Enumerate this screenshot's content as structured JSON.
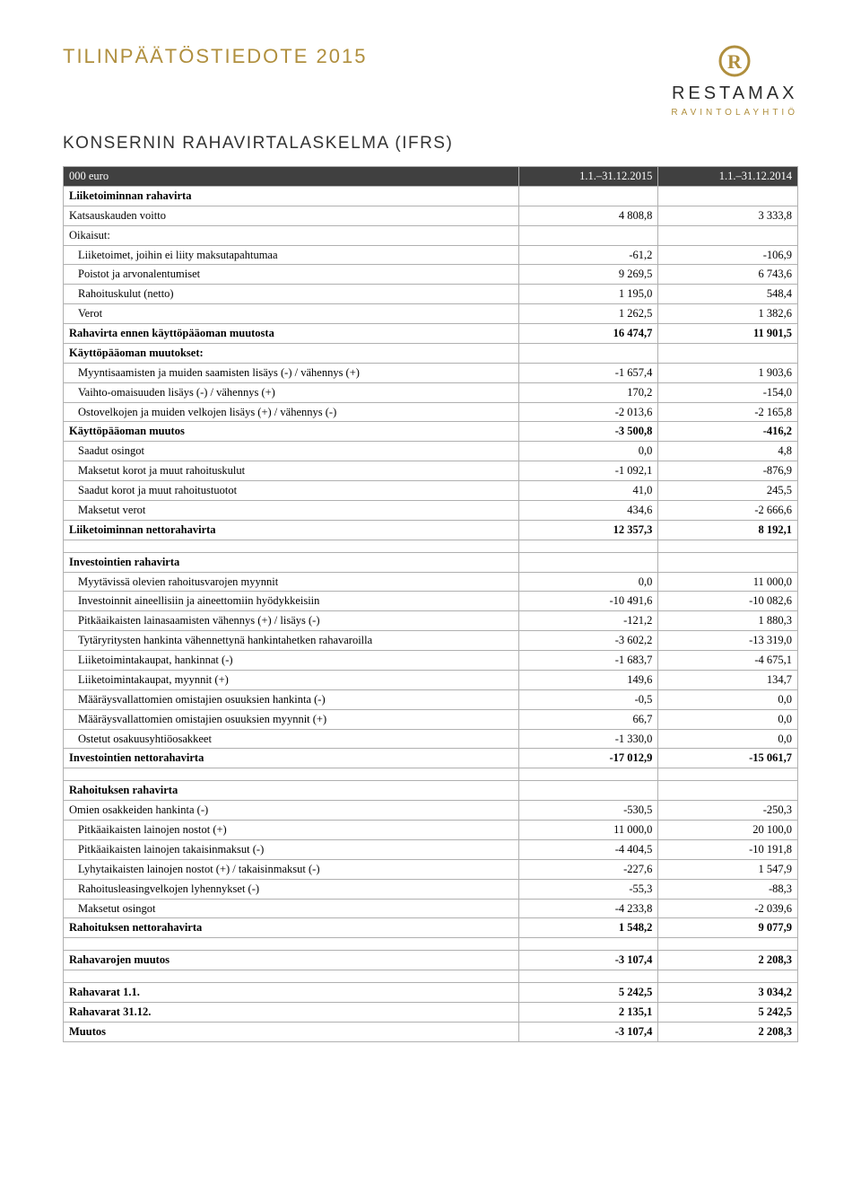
{
  "header": {
    "doc_title": "TILINPÄÄTÖSTIEDOTE 2015",
    "brand_name": "RESTAMAX",
    "brand_sub": "RAVINTOLAYHTIÖ",
    "logo_color": "#b08f3e"
  },
  "section_title": "KONSERNIN RAHAVIRTALASKELMA (IFRS)",
  "table": {
    "columns": [
      "000 euro",
      "1.1.–31.12.2015",
      "1.1.–31.12.2014"
    ],
    "rows": [
      {
        "label": "Liiketoiminnan rahavirta",
        "v1": "",
        "v2": "",
        "bold": true,
        "indent": 0
      },
      {
        "label": "Katsauskauden voitto",
        "v1": "4 808,8",
        "v2": "3 333,8",
        "indent": 0
      },
      {
        "label": "Oikaisut:",
        "v1": "",
        "v2": "",
        "indent": 0
      },
      {
        "label": "Liiketoimet, joihin ei liity maksutapahtumaa",
        "v1": "-61,2",
        "v2": "-106,9",
        "indent": 1
      },
      {
        "label": "Poistot ja arvonalentumiset",
        "v1": "9 269,5",
        "v2": "6 743,6",
        "indent": 1
      },
      {
        "label": "Rahoituskulut (netto)",
        "v1": "1 195,0",
        "v2": "548,4",
        "indent": 1
      },
      {
        "label": "Verot",
        "v1": "1 262,5",
        "v2": "1 382,6",
        "indent": 1
      },
      {
        "label": "Rahavirta ennen käyttöpääoman muutosta",
        "v1": "16 474,7",
        "v2": "11 901,5",
        "bold": true,
        "indent": 0
      },
      {
        "label": "Käyttöpääoman muutokset:",
        "v1": "",
        "v2": "",
        "bold": true,
        "indent": 0
      },
      {
        "label": "Myyntisaamisten ja muiden saamisten lisäys (-) / vähennys (+)",
        "v1": "-1 657,4",
        "v2": "1 903,6",
        "indent": 1
      },
      {
        "label": "Vaihto-omaisuuden lisäys (-) / vähennys (+)",
        "v1": "170,2",
        "v2": "-154,0",
        "indent": 1
      },
      {
        "label": "Ostovelkojen ja muiden velkojen lisäys (+) / vähennys (-)",
        "v1": "-2 013,6",
        "v2": "-2 165,8",
        "indent": 1
      },
      {
        "label": "Käyttöpääoman muutos",
        "v1": "-3 500,8",
        "v2": "-416,2",
        "bold": true,
        "indent": 0
      },
      {
        "label": "Saadut osingot",
        "v1": "0,0",
        "v2": "4,8",
        "indent": 1
      },
      {
        "label": "Maksetut korot ja muut rahoituskulut",
        "v1": "-1 092,1",
        "v2": "-876,9",
        "indent": 1
      },
      {
        "label": "Saadut korot ja muut rahoitustuotot",
        "v1": "41,0",
        "v2": "245,5",
        "indent": 1
      },
      {
        "label": "Maksetut verot",
        "v1": "434,6",
        "v2": "-2 666,6",
        "indent": 1
      },
      {
        "label": "Liiketoiminnan nettorahavirta",
        "v1": "12 357,3",
        "v2": "8 192,1",
        "bold": true,
        "indent": 0
      },
      {
        "spacer": true
      },
      {
        "label": "Investointien rahavirta",
        "v1": "",
        "v2": "",
        "bold": true,
        "indent": 0
      },
      {
        "label": "Myytävissä olevien rahoitusvarojen myynnit",
        "v1": "0,0",
        "v2": "11 000,0",
        "indent": 1
      },
      {
        "label": "Investoinnit aineellisiin ja aineettomiin hyödykkeisiin",
        "v1": "-10 491,6",
        "v2": "-10 082,6",
        "indent": 1
      },
      {
        "label": "Pitkäaikaisten lainasaamisten vähennys (+) / lisäys (-)",
        "v1": "-121,2",
        "v2": "1 880,3",
        "indent": 1
      },
      {
        "label": "Tytäryritysten hankinta vähennettynä hankintahetken rahavaroilla",
        "v1": "-3 602,2",
        "v2": "-13 319,0",
        "indent": 1
      },
      {
        "label": "Liiketoimintakaupat, hankinnat (-)",
        "v1": "-1 683,7",
        "v2": "-4 675,1",
        "indent": 1
      },
      {
        "label": "Liiketoimintakaupat, myynnit (+)",
        "v1": "149,6",
        "v2": "134,7",
        "indent": 1
      },
      {
        "label": "Määräysvallattomien omistajien osuuksien hankinta (-)",
        "v1": "-0,5",
        "v2": "0,0",
        "indent": 1
      },
      {
        "label": "Määräysvallattomien omistajien osuuksien myynnit (+)",
        "v1": "66,7",
        "v2": "0,0",
        "indent": 1
      },
      {
        "label": "Ostetut osakuusyhtiöosakkeet",
        "v1": "-1 330,0",
        "v2": "0,0",
        "indent": 1
      },
      {
        "label": "Investointien nettorahavirta",
        "v1": "-17 012,9",
        "v2": "-15 061,7",
        "bold": true,
        "indent": 0
      },
      {
        "spacer": true
      },
      {
        "label": "Rahoituksen rahavirta",
        "v1": "",
        "v2": "",
        "bold": true,
        "indent": 0
      },
      {
        "label": "Omien osakkeiden hankinta (-)",
        "v1": "-530,5",
        "v2": "-250,3",
        "indent": 0
      },
      {
        "label": "Pitkäaikaisten lainojen nostot (+)",
        "v1": "11 000,0",
        "v2": "20 100,0",
        "indent": 1
      },
      {
        "label": "Pitkäaikaisten lainojen takaisinmaksut (-)",
        "v1": "-4 404,5",
        "v2": "-10 191,8",
        "indent": 1
      },
      {
        "label": "Lyhytaikaisten lainojen nostot (+) / takaisinmaksut (-)",
        "v1": "-227,6",
        "v2": "1 547,9",
        "indent": 1
      },
      {
        "label": "Rahoitusleasingvelkojen lyhennykset (-)",
        "v1": "-55,3",
        "v2": "-88,3",
        "indent": 1
      },
      {
        "label": "Maksetut osingot",
        "v1": "-4 233,8",
        "v2": "-2 039,6",
        "indent": 1
      },
      {
        "label": "Rahoituksen nettorahavirta",
        "v1": "1 548,2",
        "v2": "9 077,9",
        "bold": true,
        "indent": 0
      },
      {
        "spacer": true
      },
      {
        "label": "Rahavarojen muutos",
        "v1": "-3 107,4",
        "v2": "2 208,3",
        "bold": true,
        "indent": 0
      },
      {
        "spacer": true
      },
      {
        "label": "Rahavarat 1.1.",
        "v1": "5 242,5",
        "v2": "3 034,2",
        "bold": true,
        "indent": 0
      },
      {
        "label": "Rahavarat 31.12.",
        "v1": "2 135,1",
        "v2": "5 242,5",
        "bold": true,
        "indent": 0
      },
      {
        "label": "Muutos",
        "v1": "-3 107,4",
        "v2": "2 208,3",
        "bold": true,
        "indent": 0
      }
    ]
  },
  "colors": {
    "accent": "#b08f3e",
    "header_bg": "#404040",
    "border": "#b0b0b0",
    "text": "#000000"
  }
}
